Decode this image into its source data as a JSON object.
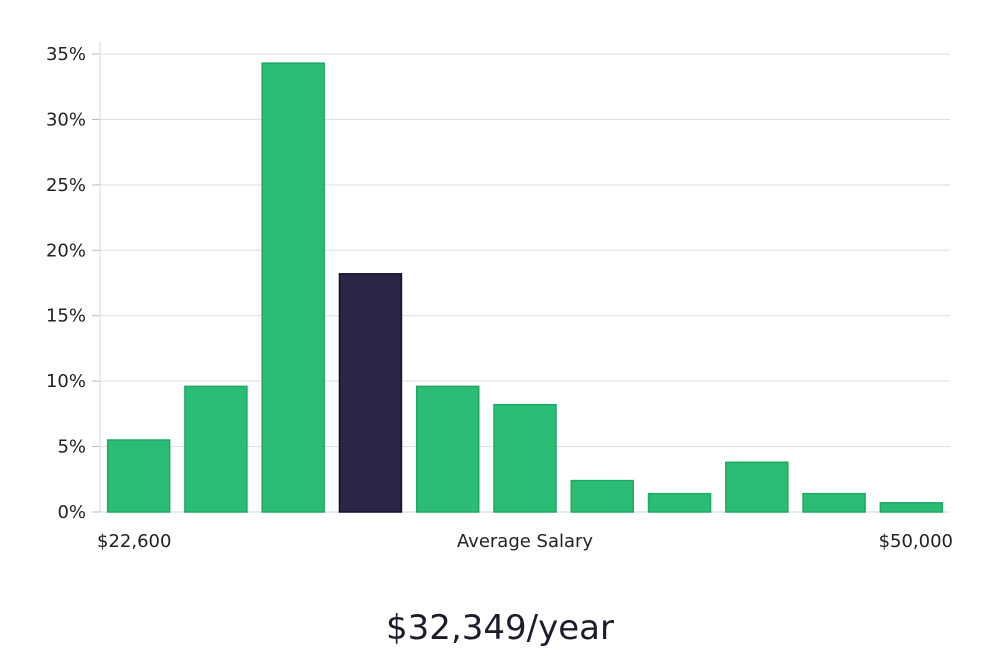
{
  "chart_data": {
    "type": "bar",
    "title": "",
    "xlabel": "Average Salary",
    "ylabel": "",
    "x_min_label": "$22,600",
    "x_max_label": "$50,000",
    "ylim": [
      0,
      36
    ],
    "yticks": [
      0,
      5,
      10,
      15,
      20,
      25,
      30,
      35
    ],
    "ytick_labels": [
      "0%",
      "5%",
      "10%",
      "15%",
      "20%",
      "25%",
      "30%",
      "35%"
    ],
    "grid": true,
    "values": [
      5.5,
      9.6,
      34.3,
      18.2,
      9.6,
      8.2,
      2.4,
      1.4,
      3.8,
      1.4,
      0.7
    ],
    "highlight_index": 3,
    "bar_color": "#2bbd76",
    "bar_edge_color": "#1fa862",
    "highlight_color": "#2a2545",
    "highlight_edge_color": "#141030"
  },
  "headline": "$32,349/year"
}
